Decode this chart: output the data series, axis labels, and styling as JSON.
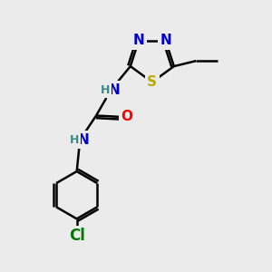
{
  "background_color": "#ebebeb",
  "atom_colors": {
    "N": "#0000cc",
    "O": "#ff0000",
    "S": "#bbaa00",
    "Cl": "#007700",
    "C": "#000000",
    "H": "#3a8a8a"
  },
  "lw": 1.8,
  "fs": 11,
  "fs_small": 9
}
